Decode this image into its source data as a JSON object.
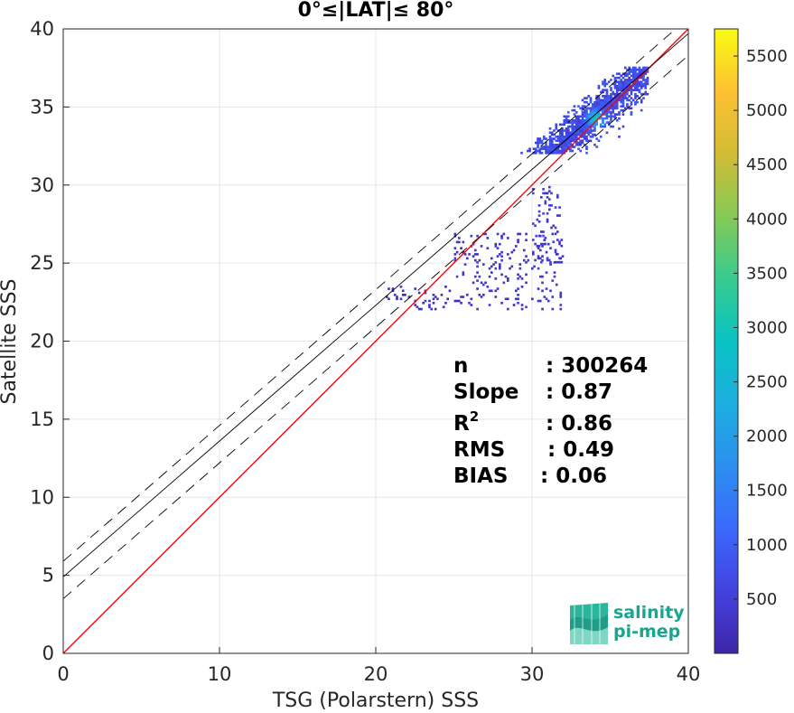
{
  "chart_data": {
    "type": "heatmap",
    "title": "0°≤|LAT|≤ 80°",
    "xlabel": "TSG (Polarstern) SSS",
    "ylabel": "Satellite SSS",
    "xlim": [
      0,
      40
    ],
    "ylim": [
      0,
      40
    ],
    "xticks": [
      "0",
      "10",
      "20",
      "30",
      "40"
    ],
    "yticks": [
      "0",
      "5",
      "10",
      "15",
      "20",
      "25",
      "30",
      "35",
      "40"
    ],
    "grid": true,
    "colorbar": {
      "range": [
        0,
        5750
      ],
      "ticks": [
        "500",
        "1000",
        "1500",
        "2000",
        "2500",
        "3000",
        "3500",
        "4000",
        "4500",
        "5000",
        "5500"
      ],
      "colormap": "parula"
    },
    "lines": [
      {
        "kind": "identity",
        "color": "#ff0000",
        "style": "solid",
        "intercept": 0,
        "slope": 1
      },
      {
        "kind": "regression",
        "color": "#000000",
        "style": "solid",
        "intercept": 4.9,
        "slope": 0.87
      },
      {
        "kind": "regression-upper",
        "color": "#000000",
        "style": "dashed",
        "intercept": 5.9,
        "slope": 0.87
      },
      {
        "kind": "regression-lower",
        "color": "#000000",
        "style": "dashed",
        "intercept": 3.5,
        "slope": 0.87
      }
    ],
    "density_regions": [
      {
        "x": [
          29,
          37.5
        ],
        "y": [
          32,
          37.6
        ],
        "level": 700,
        "center": [
          34,
          34.2
        ],
        "peak": 2200
      },
      {
        "x": [
          30,
          32
        ],
        "y": [
          25,
          30
        ],
        "level": 450
      },
      {
        "x": [
          25,
          32
        ],
        "y": [
          22,
          27
        ],
        "level": 350
      },
      {
        "x": [
          20.5,
          25
        ],
        "y": [
          22,
          23.5
        ],
        "level": 300
      }
    ],
    "stats": [
      {
        "label": "n",
        "value": ": 300264"
      },
      {
        "label": "Slope",
        "value": ": 0.87"
      },
      {
        "label": "R",
        "sup": "2",
        "value": ": 0.86"
      },
      {
        "label": "RMS",
        "value": ": 0.49"
      },
      {
        "label": "BIAS",
        "value": ": 0.06"
      }
    ]
  },
  "logo": {
    "line1": "salinity",
    "line2": "pi-mep",
    "color": "#1aa58f"
  }
}
